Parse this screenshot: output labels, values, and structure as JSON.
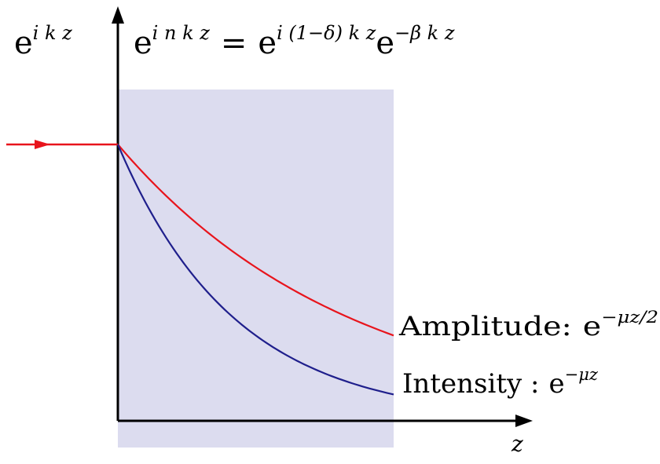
{
  "labels": {
    "incident_base": "e",
    "incident_exp": "i k z",
    "medium_lhs_base": "e",
    "medium_lhs_exp": "i n k z",
    "equals": "=",
    "medium_rhs1_base": "e",
    "medium_rhs1_exp": "i (1−δ) k z",
    "medium_rhs2_base": "e",
    "medium_rhs2_exp": "−β k z",
    "amplitude_text": "Amplitude:",
    "amplitude_base": "e",
    "amplitude_exp": "−μz/2",
    "intensity_text": "Intensity :",
    "intensity_base": "e",
    "intensity_exp": "−μz",
    "axis_z": "z"
  },
  "curves": [
    {
      "name": "amplitude",
      "decay_exponent": 0.5
    },
    {
      "name": "intensity",
      "decay_exponent": 1.0
    }
  ],
  "colors": {
    "medium_fill": "#dcdcef",
    "amplitude": "#e8141c",
    "intensity": "#1f1f8c",
    "axis": "#000000",
    "incident": "#e8141c"
  }
}
